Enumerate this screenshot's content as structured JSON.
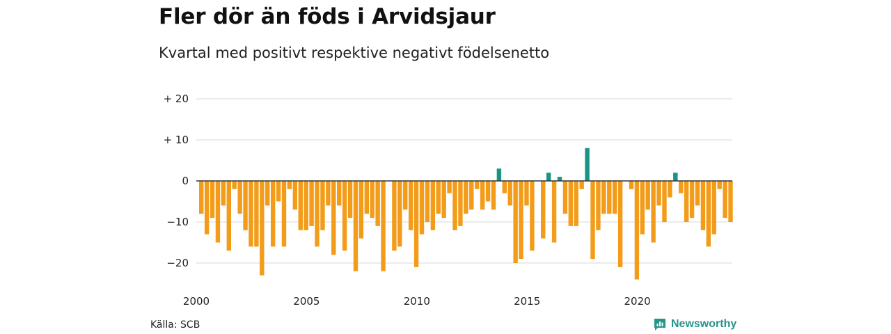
{
  "header": {
    "title": "Fler dör än föds i Arvidsjaur",
    "subtitle": "Kvartal med positivt respektive negativt födelsenetto"
  },
  "footer": {
    "source": "Källa: SCB",
    "brand": "Newsworthy"
  },
  "colors": {
    "negative": "#f39c1a",
    "positive": "#1a9484",
    "grid": "#d9d9d9",
    "zero_line": "#333333",
    "brand": "#27948a"
  },
  "chart_data": {
    "type": "bar",
    "title": "Fler dör än föds i Arvidsjaur",
    "subtitle": "Kvartal med positivt respektive negativt födelsenetto",
    "xlabel": "",
    "ylabel": "",
    "ylim": [
      -25,
      25
    ],
    "grid": true,
    "y_ticks": [
      {
        "value": 20,
        "label": "+ 20"
      },
      {
        "value": 10,
        "label": "+ 10"
      },
      {
        "value": 0,
        "label": "0"
      },
      {
        "value": -10,
        "label": "−10"
      },
      {
        "value": -20,
        "label": "−20"
      }
    ],
    "x_ticks": [
      {
        "value": 2000,
        "label": "2000"
      },
      {
        "value": 2005,
        "label": "2005"
      },
      {
        "value": 2010,
        "label": "2010"
      },
      {
        "value": 2015,
        "label": "2015"
      },
      {
        "value": 2020,
        "label": "2020"
      }
    ],
    "start_year": 2000,
    "quarters_per_year": 4,
    "values": [
      -8,
      -13,
      -9,
      -15,
      -6,
      -17,
      -2,
      -8,
      -12,
      -16,
      -16,
      -23,
      -6,
      -16,
      -5,
      -16,
      -2,
      -7,
      -12,
      -12,
      -11,
      -16,
      -12,
      -6,
      -18,
      -6,
      -17,
      -9,
      -22,
      -14,
      -8,
      -9,
      -11,
      -22,
      0,
      -17,
      -16,
      -7,
      -12,
      -21,
      -13,
      -10,
      -12,
      -8,
      -9,
      -3,
      -12,
      -11,
      -8,
      -7,
      -2,
      -7,
      -5,
      -7,
      3,
      -3,
      -6,
      -20,
      -19,
      -6,
      -17,
      0,
      -14,
      2,
      -15,
      1,
      -8,
      -11,
      -11,
      -2,
      8,
      -19,
      -12,
      -8,
      -8,
      -8,
      -21,
      0,
      -2,
      -24,
      -13,
      -7,
      -15,
      -6,
      -10,
      -4,
      2,
      -3,
      -10,
      -9,
      -6,
      -12,
      -16,
      -13,
      -2,
      -9,
      -10
    ]
  }
}
